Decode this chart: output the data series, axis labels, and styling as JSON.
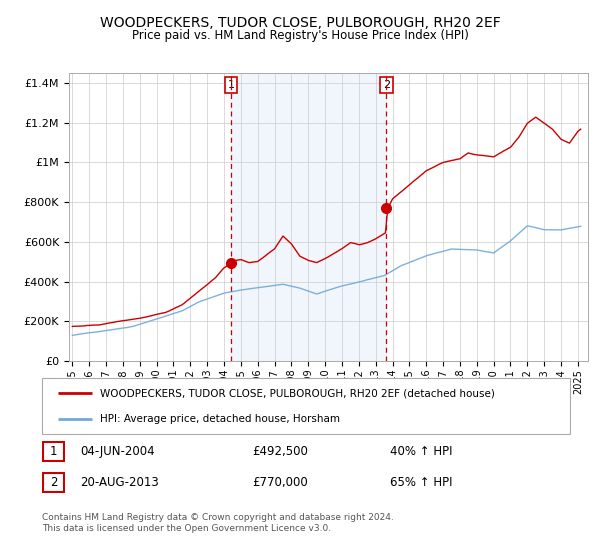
{
  "title": "WOODPECKERS, TUDOR CLOSE, PULBOROUGH, RH20 2EF",
  "subtitle": "Price paid vs. HM Land Registry's House Price Index (HPI)",
  "legend_line1": "WOODPECKERS, TUDOR CLOSE, PULBOROUGH, RH20 2EF (detached house)",
  "legend_line2": "HPI: Average price, detached house, Horsham",
  "transaction1_date": "04-JUN-2004",
  "transaction1_price": "£492,500",
  "transaction1_hpi": "40% ↑ HPI",
  "transaction2_date": "20-AUG-2013",
  "transaction2_price": "£770,000",
  "transaction2_hpi": "65% ↑ HPI",
  "footnote1": "Contains HM Land Registry data © Crown copyright and database right 2024.",
  "footnote2": "This data is licensed under the Open Government Licence v3.0.",
  "hpi_color": "#6fa8dc",
  "price_color": "#cc0000",
  "shade_color": "#ddeeff",
  "vline_color": "#cc0000",
  "grid_color": "#cccccc",
  "bg_color": "#ffffff",
  "transaction1_x": 2004.42,
  "transaction2_x": 2013.63,
  "transaction1_y": 492500,
  "transaction2_y": 770000,
  "ylim": [
    0,
    1450000
  ],
  "xlim_start": 1994.8,
  "xlim_end": 2025.6
}
